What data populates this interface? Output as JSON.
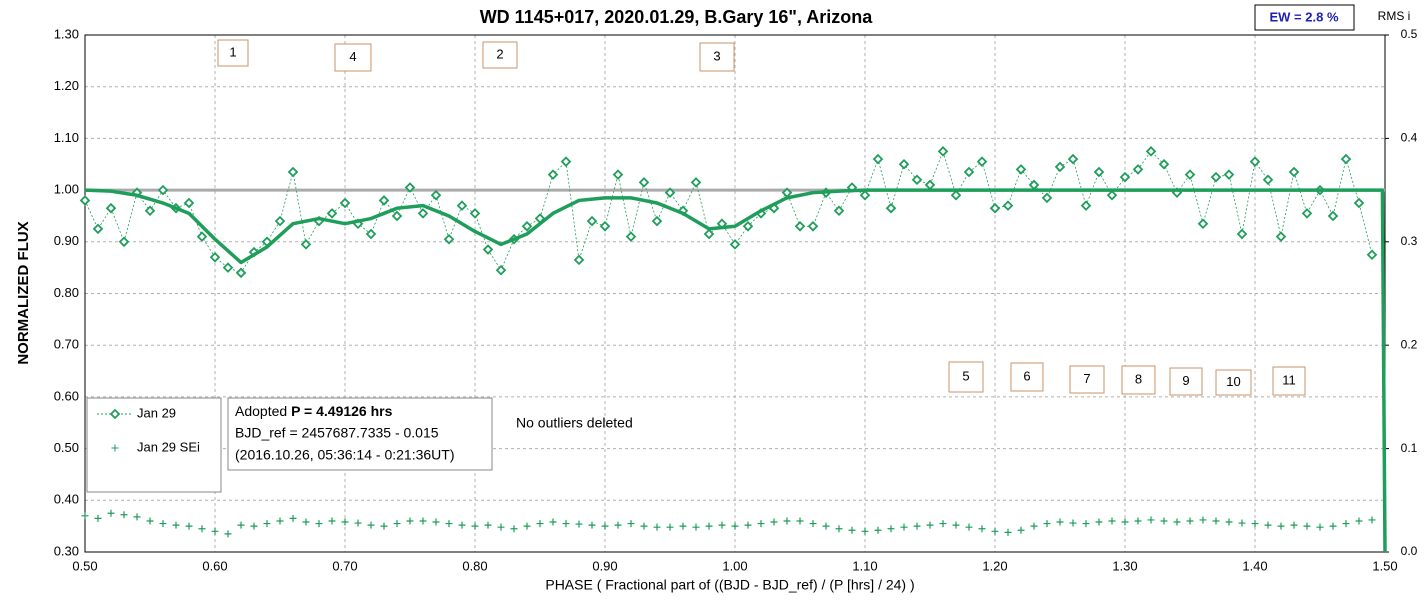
{
  "chart_data": {
    "type": "scatter",
    "title": "WD 1145+017, 2020.01.29, B.Gary 16\", Arizona",
    "ew_label": "EW = 2.8 %",
    "y2_title": "RMS i",
    "ylabel": "NORMALIZED FLUX",
    "xlabel": "PHASE ( Fractional part of ((BJD - BJD_ref) / (P [hrs] / 24) )",
    "note": "No outliers deleted",
    "info": {
      "line1_prefix": "Adopted ",
      "line1_bold": "P = 4.49126 hrs",
      "line2": "BJD_ref = 2457687.7335 - 0.015",
      "line3": "(2016.10.26, 05:36:14 - 0:21:36UT)"
    },
    "annotations": [
      "1",
      "4",
      "2",
      "3",
      "5",
      "6",
      "7",
      "8",
      "9",
      "10",
      "11"
    ],
    "xlim": [
      0.5,
      1.5
    ],
    "xticks": [
      {
        "value": 0.5,
        "label": "0.50"
      },
      {
        "value": 0.6,
        "label": "0.60"
      },
      {
        "value": 0.7,
        "label": "0.70"
      },
      {
        "value": 0.8,
        "label": "0.80"
      },
      {
        "value": 0.9,
        "label": "0.90"
      },
      {
        "value": 1.0,
        "label": "1.00"
      },
      {
        "value": 1.1,
        "label": "1.10"
      },
      {
        "value": 1.2,
        "label": "1.20"
      },
      {
        "value": 1.3,
        "label": "1.30"
      },
      {
        "value": 1.4,
        "label": "1.40"
      },
      {
        "value": 1.5,
        "label": "1.50"
      }
    ],
    "ylim": [
      0.3,
      1.3
    ],
    "yticks": [
      {
        "value": 0.3,
        "label": "0.30"
      },
      {
        "value": 0.4,
        "label": "0.40"
      },
      {
        "value": 0.5,
        "label": "0.50"
      },
      {
        "value": 0.6,
        "label": "0.60"
      },
      {
        "value": 0.7,
        "label": "0.70"
      },
      {
        "value": 0.8,
        "label": "0.80"
      },
      {
        "value": 0.9,
        "label": "0.90"
      },
      {
        "value": 1.0,
        "label": "1.00"
      },
      {
        "value": 1.1,
        "label": "1.10"
      },
      {
        "value": 1.2,
        "label": "1.20"
      },
      {
        "value": 1.3,
        "label": "1.30"
      }
    ],
    "y2lim": [
      0,
      0.5
    ],
    "y2ticks": [
      {
        "value": 0,
        "label": "0.0"
      },
      0.1,
      0.2,
      0.3,
      0.4,
      0.5
    ],
    "grid": true,
    "reference_line": 1.0,
    "x": [
      0.5,
      0.51,
      0.52,
      0.53,
      0.54,
      0.55,
      0.56,
      0.57,
      0.58,
      0.59,
      0.6,
      0.61,
      0.62,
      0.63,
      0.64,
      0.65,
      0.66,
      0.67,
      0.68,
      0.69,
      0.7,
      0.71,
      0.72,
      0.73,
      0.74,
      0.75,
      0.76,
      0.77,
      0.78,
      0.79,
      0.8,
      0.81,
      0.82,
      0.83,
      0.84,
      0.85,
      0.86,
      0.87,
      0.88,
      0.89,
      0.9,
      0.91,
      0.92,
      0.93,
      0.94,
      0.95,
      0.96,
      0.97,
      0.98,
      0.99,
      1.0,
      1.01,
      1.02,
      1.03,
      1.04,
      1.05,
      1.06,
      1.07,
      1.08,
      1.09,
      1.1,
      1.11,
      1.12,
      1.13,
      1.14,
      1.15,
      1.16,
      1.17,
      1.18,
      1.19,
      1.2,
      1.21,
      1.22,
      1.23,
      1.24,
      1.25,
      1.26,
      1.27,
      1.28,
      1.29,
      1.3,
      1.31,
      1.32,
      1.33,
      1.34,
      1.35,
      1.36,
      1.37,
      1.38,
      1.39,
      1.4,
      1.41,
      1.42,
      1.43,
      1.44,
      1.45,
      1.46,
      1.47,
      1.48,
      1.49
    ],
    "series": [
      {
        "name": "Jan 29",
        "color": "#1e9e5a",
        "marker": "diamond",
        "values": [
          0.98,
          0.925,
          0.965,
          0.9,
          0.995,
          0.96,
          1.0,
          0.965,
          0.975,
          0.91,
          0.87,
          0.85,
          0.84,
          0.88,
          0.9,
          0.94,
          1.035,
          0.895,
          0.94,
          0.955,
          0.975,
          0.935,
          0.915,
          0.98,
          0.95,
          1.005,
          0.955,
          0.99,
          0.905,
          0.97,
          0.955,
          0.885,
          0.845,
          0.905,
          0.93,
          0.945,
          1.03,
          1.055,
          0.865,
          0.94,
          0.93,
          1.03,
          0.91,
          1.015,
          0.94,
          0.995,
          0.96,
          1.015,
          0.915,
          0.935,
          0.895,
          0.93,
          0.955,
          0.965,
          0.995,
          0.93,
          0.93,
          0.995,
          0.96,
          1.005,
          0.99,
          1.06,
          0.965,
          1.05,
          1.02,
          1.01,
          1.075,
          0.99,
          1.035,
          1.055,
          0.965,
          0.97,
          1.04,
          1.01,
          0.985,
          1.045,
          1.06,
          0.97,
          1.035,
          0.99,
          1.025,
          1.04,
          1.075,
          1.05,
          0.995,
          1.03,
          0.935,
          1.025,
          1.03,
          0.915,
          1.055,
          1.02,
          0.91,
          1.035,
          0.955,
          1.0,
          0.95,
          1.06,
          0.975,
          0.875
        ]
      },
      {
        "name": "Jan 29 SEi",
        "color": "#1e9e5a",
        "marker": "plus",
        "values": [
          0.37,
          0.365,
          0.375,
          0.372,
          0.368,
          0.36,
          0.355,
          0.352,
          0.35,
          0.345,
          0.34,
          0.335,
          0.352,
          0.35,
          0.355,
          0.36,
          0.365,
          0.358,
          0.355,
          0.36,
          0.358,
          0.356,
          0.352,
          0.35,
          0.355,
          0.36,
          0.36,
          0.358,
          0.355,
          0.352,
          0.35,
          0.352,
          0.348,
          0.345,
          0.35,
          0.355,
          0.358,
          0.355,
          0.354,
          0.352,
          0.35,
          0.352,
          0.355,
          0.35,
          0.348,
          0.348,
          0.35,
          0.348,
          0.35,
          0.352,
          0.35,
          0.352,
          0.355,
          0.358,
          0.36,
          0.36,
          0.355,
          0.35,
          0.345,
          0.342,
          0.34,
          0.342,
          0.345,
          0.348,
          0.35,
          0.352,
          0.355,
          0.352,
          0.348,
          0.345,
          0.34,
          0.338,
          0.342,
          0.35,
          0.355,
          0.358,
          0.356,
          0.355,
          0.358,
          0.36,
          0.358,
          0.36,
          0.362,
          0.36,
          0.358,
          0.36,
          0.362,
          0.36,
          0.358,
          0.356,
          0.355,
          0.352,
          0.35,
          0.352,
          0.35,
          0.348,
          0.35,
          0.355,
          0.36,
          0.362
        ]
      }
    ],
    "model": {
      "color": "#1e9e5a",
      "x": [
        0.5,
        0.52,
        0.54,
        0.56,
        0.58,
        0.6,
        0.62,
        0.64,
        0.66,
        0.68,
        0.7,
        0.72,
        0.74,
        0.76,
        0.78,
        0.8,
        0.82,
        0.84,
        0.86,
        0.88,
        0.9,
        0.92,
        0.94,
        0.96,
        0.98,
        1.0,
        1.02,
        1.04,
        1.06,
        1.08,
        1.1,
        1.14,
        1.2,
        1.3,
        1.4,
        1.498,
        1.5
      ],
      "values": [
        1.0,
        0.998,
        0.99,
        0.975,
        0.955,
        0.905,
        0.86,
        0.89,
        0.935,
        0.945,
        0.935,
        0.945,
        0.965,
        0.97,
        0.95,
        0.92,
        0.895,
        0.915,
        0.955,
        0.98,
        0.985,
        0.985,
        0.975,
        0.955,
        0.925,
        0.93,
        0.96,
        0.985,
        0.995,
        0.998,
        1.0,
        1.0,
        1.0,
        1.0,
        1.0,
        1.0,
        0.3
      ]
    }
  }
}
